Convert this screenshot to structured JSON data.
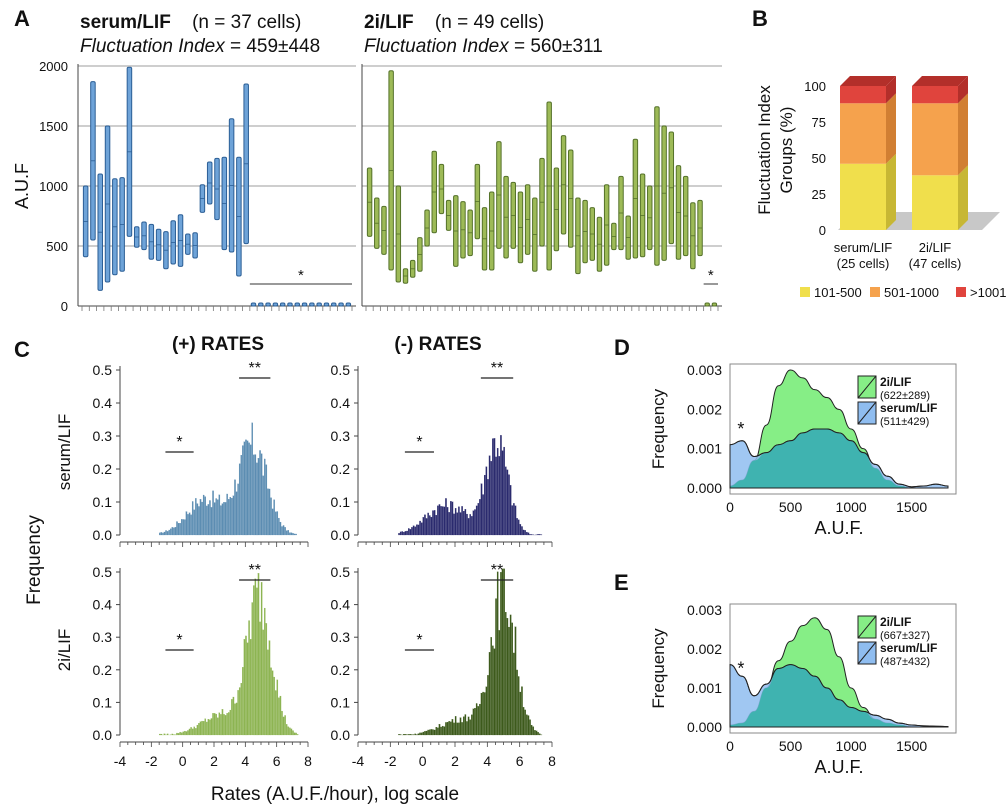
{
  "colors": {
    "serum_bar": "#6ea3d8",
    "serum_bar_edge": "#2c5f96",
    "twoi_bar": "#9dba57",
    "twoi_bar_edge": "#55722a",
    "hist_pos_serum": "#5c8db2",
    "hist_neg_serum": "#2b2b6e",
    "hist_pos_2i": "#8db452",
    "hist_neg_2i": "#3d5a1c",
    "stack_101_500": "#f0df4c",
    "stack_501_1000": "#f5a24d",
    "stack_gt_1001": "#e0443d",
    "density_2i": "#86ee86",
    "density_serum": "#8fbdf0",
    "density_overlap": "#3fb3b0"
  },
  "chart_data": [
    {
      "id": "A",
      "type": "bar",
      "panel_label": "A",
      "ylabel": "A.U.F",
      "ylim": [
        0,
        2000
      ],
      "yticks": [
        "0",
        "500",
        "1000",
        "1500",
        "2000"
      ],
      "grid": true,
      "panels": [
        {
          "title_bold": "serum/LIF",
          "title_rest": "(n = 37 cells)",
          "subtitle_italic": "Fluctuation Index",
          "subtitle_rest": "= 459±448",
          "ranges": [
            [
              410,
              1000
            ],
            [
              550,
              1870
            ],
            [
              130,
              1100
            ],
            [
              200,
              1500
            ],
            [
              260,
              1060
            ],
            [
              290,
              1070
            ],
            [
              580,
              1990
            ],
            [
              490,
              660
            ],
            [
              470,
              700
            ],
            [
              390,
              680
            ],
            [
              380,
              640
            ],
            [
              310,
              620
            ],
            [
              350,
              710
            ],
            [
              330,
              760
            ],
            [
              430,
              600
            ],
            [
              400,
              610
            ],
            [
              780,
              1010
            ],
            [
              850,
              1200
            ],
            [
              720,
              1230
            ],
            [
              470,
              1240
            ],
            [
              450,
              1560
            ],
            [
              250,
              1240
            ],
            [
              520,
              1850
            ],
            [
              0,
              20
            ],
            [
              0,
              20
            ],
            [
              0,
              20
            ],
            [
              0,
              20
            ],
            [
              0,
              20
            ],
            [
              0,
              20
            ],
            [
              0,
              20
            ],
            [
              0,
              20
            ],
            [
              0,
              20
            ],
            [
              0,
              20
            ],
            [
              0,
              25
            ],
            [
              0,
              20
            ],
            [
              0,
              20
            ],
            [
              0,
              20
            ]
          ],
          "annotation": "*"
        },
        {
          "title_bold": "2i/LIF",
          "title_rest": "(n = 49 cells)",
          "subtitle_italic": "Fluctuation Index",
          "subtitle_rest": "= 560±311",
          "ranges": [
            [
              580,
              1150
            ],
            [
              480,
              900
            ],
            [
              430,
              830
            ],
            [
              300,
              1960
            ],
            [
              200,
              1000
            ],
            [
              190,
              310
            ],
            [
              240,
              380
            ],
            [
              290,
              570
            ],
            [
              500,
              800
            ],
            [
              610,
              1290
            ],
            [
              770,
              1180
            ],
            [
              630,
              880
            ],
            [
              330,
              920
            ],
            [
              400,
              870
            ],
            [
              420,
              800
            ],
            [
              560,
              1180
            ],
            [
              300,
              820
            ],
            [
              300,
              950
            ],
            [
              480,
              1370
            ],
            [
              400,
              1080
            ],
            [
              480,
              1030
            ],
            [
              360,
              950
            ],
            [
              430,
              1010
            ],
            [
              290,
              900
            ],
            [
              500,
              1230
            ],
            [
              300,
              1700
            ],
            [
              460,
              1150
            ],
            [
              600,
              1420
            ],
            [
              490,
              1300
            ],
            [
              270,
              900
            ],
            [
              360,
              880
            ],
            [
              380,
              820
            ],
            [
              290,
              740
            ],
            [
              340,
              1010
            ],
            [
              470,
              690
            ],
            [
              470,
              1080
            ],
            [
              390,
              750
            ],
            [
              400,
              1390
            ],
            [
              410,
              1100
            ],
            [
              470,
              1000
            ],
            [
              340,
              1660
            ],
            [
              380,
              1500
            ],
            [
              520,
              1450
            ],
            [
              390,
              1170
            ],
            [
              420,
              1080
            ],
            [
              310,
              860
            ],
            [
              420,
              880
            ],
            [
              0,
              20
            ],
            [
              0,
              20
            ]
          ],
          "annotation": "*"
        }
      ]
    },
    {
      "id": "B",
      "type": "bar",
      "subtype": "stacked-3d",
      "panel_label": "B",
      "ylabel": "Fluctuation Index Groups (%)",
      "ylim": [
        0,
        100
      ],
      "yticks": [
        "0",
        "25",
        "50",
        "75",
        "100"
      ],
      "categories": [
        "serum/LIF (25 cells)",
        "2i/LIF (47 cells)"
      ],
      "category_lines": [
        [
          "serum/LIF",
          "(25 cells)"
        ],
        [
          "2i/LIF",
          "(47 cells)"
        ]
      ],
      "series": [
        {
          "name": "101-500",
          "values": [
            46,
            38
          ]
        },
        {
          "name": "501-1000",
          "values": [
            42,
            50
          ]
        },
        {
          "name": ">1001",
          "values": [
            12,
            12
          ]
        }
      ],
      "legend": "bottom"
    },
    {
      "id": "C",
      "type": "bar",
      "subtype": "histogram-grid",
      "panel_label": "C",
      "col_titles": [
        "(+) RATES",
        "(-) RATES"
      ],
      "row_titles": [
        "serum/LIF",
        "2i/LIF"
      ],
      "ylabel": "Frequency",
      "xlabel": "Rates (A.U.F./hour), log scale",
      "xlim": [
        -4,
        8
      ],
      "xticks": [
        "-4",
        "-2",
        "0",
        "2",
        "4",
        "6",
        "8"
      ],
      "ylim": [
        0,
        0.5
      ],
      "yticks": [
        "0.0",
        "0.1",
        "0.2",
        "0.3",
        "0.4",
        "0.5"
      ],
      "annotations": [
        "*",
        "**"
      ],
      "hist_shapes": [
        {
          "mode_mu": 4.5,
          "mode_sigma": 0.9,
          "mode_amp": 0.27,
          "shoulder_mu": 1.5,
          "shoulder_sigma": 1.2,
          "shoulder_amp": 0.11,
          "x_range": [
            -1.5,
            7.2
          ]
        },
        {
          "mode_mu": 4.6,
          "mode_sigma": 0.7,
          "mode_amp": 0.28,
          "shoulder_mu": 1.5,
          "shoulder_sigma": 1.3,
          "shoulder_amp": 0.09,
          "x_range": [
            -1.5,
            7.3
          ]
        },
        {
          "mode_mu": 4.9,
          "mode_sigma": 0.8,
          "mode_amp": 0.42,
          "shoulder_mu": 2.5,
          "shoulder_sigma": 1.3,
          "shoulder_amp": 0.06,
          "x_range": [
            -1.5,
            7.3
          ]
        },
        {
          "mode_mu": 5.0,
          "mode_sigma": 0.75,
          "mode_amp": 0.44,
          "shoulder_mu": 2.5,
          "shoulder_sigma": 1.3,
          "shoulder_amp": 0.05,
          "x_range": [
            -1.5,
            7.3
          ]
        }
      ]
    },
    {
      "id": "D",
      "type": "area",
      "panel_label": "D",
      "ylabel": "Frequency",
      "xlabel": "A.U.F.",
      "xlim": [
        0,
        1800
      ],
      "xticks": [
        "0",
        "500",
        "1000",
        "1500"
      ],
      "ylim": [
        0,
        0.003
      ],
      "yticks": [
        "0.000",
        "0.001",
        "0.002",
        "0.003"
      ],
      "series": [
        {
          "name": "2i/LIF",
          "stat": "(622±289)",
          "x": [
            0,
            100,
            200,
            300,
            400,
            500,
            600,
            700,
            800,
            900,
            1000,
            1100,
            1200,
            1300,
            1400,
            1500,
            1600,
            1700,
            1800
          ],
          "y": [
            5e-05,
            0.0002,
            0.0007,
            0.0016,
            0.0026,
            0.003,
            0.0028,
            0.0025,
            0.0023,
            0.002,
            0.0015,
            0.001,
            0.0005,
            0.0002,
            5e-05,
            0.0,
            0.0,
            0.0,
            0.0
          ]
        },
        {
          "name": "serum/LIF",
          "stat": "(511±429)",
          "x": [
            0,
            100,
            200,
            300,
            400,
            500,
            600,
            700,
            800,
            900,
            1000,
            1100,
            1200,
            1300,
            1400,
            1500,
            1600,
            1700,
            1800
          ],
          "y": [
            0.0011,
            0.0012,
            0.0008,
            0.0009,
            0.0011,
            0.0012,
            0.0014,
            0.0015,
            0.0015,
            0.0014,
            0.0012,
            0.0009,
            0.0006,
            0.0003,
            0.0001,
            3e-05,
            5e-05,
            0.0001,
            5e-05
          ]
        }
      ],
      "annotation": "*",
      "legend": "top-right"
    },
    {
      "id": "E",
      "type": "area",
      "panel_label": "E",
      "ylabel": "Frequency",
      "xlabel": "A.U.F.",
      "xlim": [
        0,
        1800
      ],
      "xticks": [
        "0",
        "500",
        "1000",
        "1500"
      ],
      "ylim": [
        0,
        0.003
      ],
      "yticks": [
        "0.000",
        "0.001",
        "0.002",
        "0.003"
      ],
      "series": [
        {
          "name": "2i/LIF",
          "stat": "(667±327)",
          "x": [
            0,
            100,
            200,
            300,
            400,
            500,
            600,
            700,
            800,
            900,
            1000,
            1100,
            1200,
            1300,
            1400,
            1500,
            1600,
            1700,
            1800
          ],
          "y": [
            5e-05,
            0.0001,
            0.0004,
            0.001,
            0.0017,
            0.0022,
            0.0026,
            0.0028,
            0.0025,
            0.0018,
            0.001,
            0.0005,
            0.0002,
            0.0001,
            5e-05,
            0.0,
            0.0,
            0.0,
            0.0
          ]
        },
        {
          "name": "serum/LIF",
          "stat": "(487±432)",
          "x": [
            0,
            100,
            200,
            300,
            400,
            500,
            600,
            700,
            800,
            900,
            1000,
            1100,
            1200,
            1300,
            1400,
            1500,
            1600,
            1700,
            1800
          ],
          "y": [
            0.0016,
            0.0013,
            0.0008,
            0.0011,
            0.0015,
            0.0016,
            0.0015,
            0.0013,
            0.001,
            0.0007,
            0.0005,
            0.0004,
            0.0003,
            0.0002,
            0.0001,
            5e-05,
            3e-05,
            2e-05,
            1e-05
          ]
        }
      ],
      "annotation": "*",
      "legend": "top-right"
    }
  ]
}
